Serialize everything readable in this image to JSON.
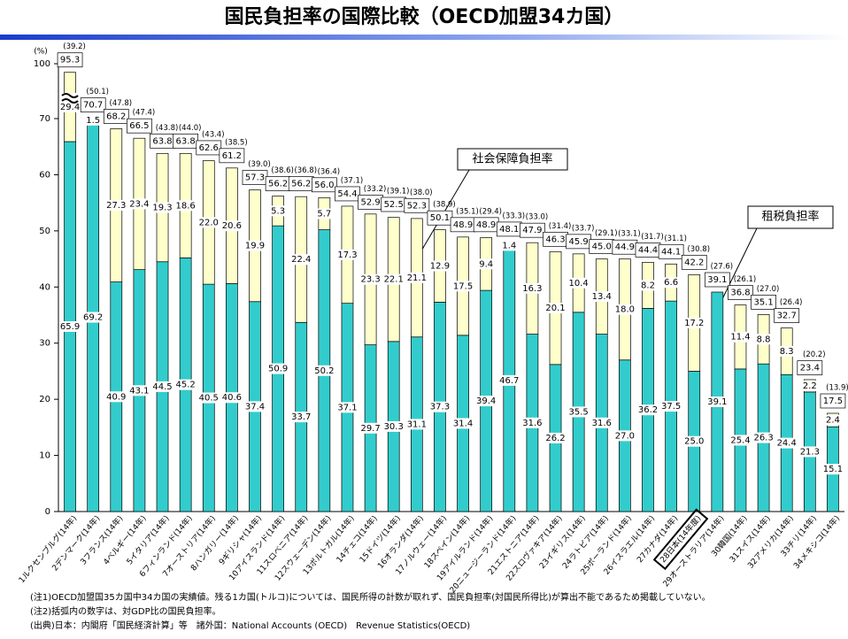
{
  "chart_data": {
    "type": "stacked_bar",
    "title": "国民負担率の国際比較（OECD加盟34カ国）",
    "y_label": "(%)",
    "categories": [
      "1ルクセンブルグ(14年)",
      "2デンマーク(14年)",
      "3フランス(14年)",
      "4ベルギー(14年)",
      "5イタリア(14年)",
      "6フィンランド(14年)",
      "7オーストリア(14年)",
      "8ハンガリー(14年)",
      "9ギリシャ(14年)",
      "10アイスランド(14年)",
      "11スロベニア(14年)",
      "12スウェーデン(14年)",
      "13ポルトガル(14年)",
      "14チェコ(14年)",
      "15ドイツ(14年)",
      "16オランダ(14年)",
      "17ノルウェー(14年)",
      "18スペイン(14年)",
      "19アイルランド(14年)",
      "20ニュージーランド(14年)",
      "21エストニア(14年)",
      "22スロヴァキア(14年)",
      "23イギリス(14年)",
      "24ラトビア(14年)",
      "25ポーランド(14年)",
      "26イスラエル(14年)",
      "27カナダ(14年)",
      "28日本(14年度)",
      "29オーストラリア(14年)",
      "30韓国(14年)",
      "31スイス(14年)",
      "32アメリカ(14年)",
      "33チリ(14年)",
      "34メキシコ(14年)"
    ],
    "series": [
      {
        "name": "租税負担率",
        "color": "#33cccc",
        "values": [
          65.9,
          69.2,
          40.9,
          43.1,
          44.5,
          45.2,
          40.5,
          40.6,
          37.4,
          50.9,
          33.7,
          50.2,
          37.1,
          29.7,
          30.3,
          31.1,
          37.3,
          31.4,
          39.4,
          46.7,
          31.6,
          26.2,
          35.5,
          31.6,
          27.0,
          36.2,
          37.5,
          25.0,
          39.1,
          25.4,
          26.3,
          24.4,
          21.3,
          15.1
        ],
        "value_labels": [
          "65.9",
          "69.2",
          "40.9",
          "43.1",
          "44.5",
          "45.2",
          "40.5",
          "40.6",
          "37.4",
          "50.9",
          "33.7",
          "50.2",
          "37.1",
          "29.7",
          "30.3",
          "31.1",
          "37.3",
          "31.4",
          "39.4",
          "46.7",
          "31.6",
          "26.2",
          "35.5",
          "31.6",
          "27.0",
          "36.2",
          "37.5",
          "25.0",
          "39.1",
          "25.4",
          "26.3",
          "24.4",
          "21.3",
          "15.1"
        ]
      },
      {
        "name": "社会保障負担率",
        "color": "#ffffcc",
        "values": [
          29.4,
          1.5,
          27.3,
          23.4,
          19.3,
          18.6,
          22.0,
          20.6,
          19.9,
          5.3,
          22.4,
          5.7,
          17.3,
          23.3,
          22.1,
          21.1,
          12.9,
          17.5,
          9.4,
          1.4,
          16.3,
          20.1,
          10.4,
          13.4,
          18.0,
          8.2,
          6.6,
          17.2,
          null,
          11.4,
          8.8,
          8.3,
          2.2,
          2.4
        ],
        "value_labels": [
          "29.4",
          "1.5",
          "27.3",
          "23.4",
          "19.3",
          "18.6",
          "22.0",
          "20.6",
          "19.9",
          "5.3",
          "22.4",
          "5.7",
          "17.3",
          "23.3",
          "22.1",
          "21.1",
          "12.9",
          "17.5",
          "9.4",
          "1.4",
          "16.3",
          "20.1",
          "10.4",
          "13.4",
          "18.0",
          "8.2",
          "6.6",
          "17.2",
          null,
          "11.4",
          "8.8",
          "8.3",
          "2.2",
          "2.4"
        ]
      }
    ],
    "totals": {
      "values": [
        95.3,
        70.7,
        68.2,
        66.5,
        63.8,
        63.8,
        62.6,
        61.2,
        57.3,
        56.2,
        56.2,
        56.0,
        54.4,
        52.9,
        52.5,
        52.3,
        50.1,
        48.9,
        48.9,
        48.1,
        47.9,
        46.3,
        45.9,
        45.0,
        44.9,
        44.4,
        44.1,
        42.2,
        39.1,
        36.8,
        35.1,
        32.7,
        23.4,
        17.5
      ],
      "value_labels": [
        "95.3",
        "70.7",
        "68.2",
        "66.5",
        "63.8",
        "63.8",
        "62.6",
        "61.2",
        "57.3",
        "56.2",
        "56.2",
        "56.0",
        "54.4",
        "52.9",
        "52.5",
        "52.3",
        "50.1",
        "48.9",
        "48.9",
        "48.1",
        "47.9",
        "46.3",
        "45.9",
        "45.0",
        "44.9",
        "44.4",
        "44.1",
        "42.2",
        "39.1",
        "36.8",
        "35.1",
        "32.7",
        "23.4",
        "17.5"
      ]
    },
    "gdp_ratio": {
      "values": [
        39.2,
        50.1,
        47.8,
        47.4,
        43.8,
        44.0,
        43.4,
        38.5,
        39.0,
        38.6,
        36.8,
        36.4,
        37.1,
        33.2,
        39.1,
        38.0,
        38.9,
        35.1,
        29.4,
        33.3,
        33.0,
        31.4,
        33.7,
        29.1,
        33.1,
        31.7,
        31.1,
        30.8,
        27.6,
        26.1,
        27.0,
        26.4,
        20.2,
        13.9
      ],
      "value_labels": [
        "(39.2)",
        "(50.1)",
        "(47.8)",
        "(47.4)",
        "(43.8)",
        "(44.0)",
        "(43.4)",
        "(38.5)",
        "(39.0)",
        "(38.6)",
        "(36.8)",
        "(36.4)",
        "(37.1)",
        "(33.2)",
        "(39.1)",
        "(38.0)",
        "(38.9)",
        "(35.1)",
        "(29.4)",
        "(33.3)",
        "(33.0)",
        "(31.4)",
        "(33.7)",
        "(29.1)",
        "(33.1)",
        "(31.7)",
        "(31.1)",
        "(30.8)",
        "(27.6)",
        "(26.1)",
        "(27.0)",
        "(26.4)",
        "(20.2)",
        "(13.9)"
      ]
    },
    "ylim": [
      0,
      100
    ],
    "yticks": [
      0,
      10,
      20,
      30,
      40,
      50,
      60,
      70,
      100
    ],
    "broken_axis": true,
    "highlight_index": 27,
    "notes": [
      "(注1)OECD加盟国35カ国中34カ国の実績値。残る1カ国(トルコ)については、国民所得の計数が取れず、国民負担率(対国民所得比)が算出不能であるため掲載していない。",
      "(注2)括弧内の数字は、対GDP比の国民負担率。",
      "(出典)日本：内閣府「国民経済計算」等　諸外国：National Accounts (OECD)　Revenue Statistics(OECD)"
    ]
  }
}
